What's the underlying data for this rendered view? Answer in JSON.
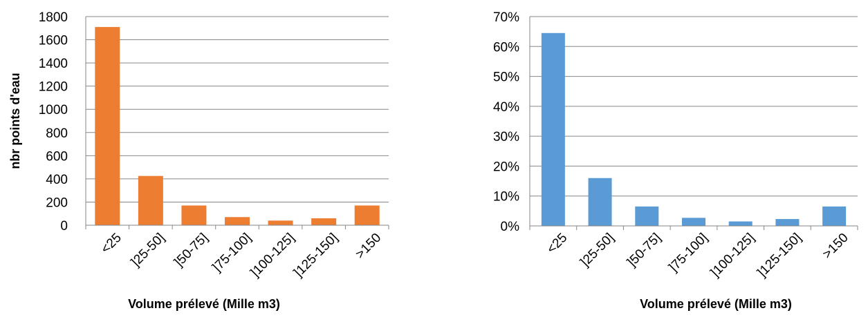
{
  "chart_data": [
    {
      "type": "bar",
      "title": "",
      "xlabel": "Volume prélevé (Mille m3)",
      "ylabel": "nbr points d'eau",
      "categories": [
        "<25",
        "]25-50]",
        "]50-75]",
        "]75-100]",
        "]100-125]",
        "]125-150]",
        ">150"
      ],
      "series": [
        {
          "values": [
            1710,
            425,
            170,
            70,
            40,
            60,
            170
          ]
        }
      ],
      "ylim": [
        0,
        1800
      ],
      "yticks": [
        0,
        200,
        400,
        600,
        800,
        1000,
        1200,
        1400,
        1600,
        1800
      ],
      "ytick_labels": [
        "0",
        "200",
        "400",
        "600",
        "800",
        "1000",
        "1200",
        "1400",
        "1600",
        "1800"
      ],
      "grid": true,
      "legend": "none",
      "color": "#ED7D31"
    },
    {
      "type": "bar",
      "title": "",
      "xlabel": "Volume prélevé (Mille m3)",
      "ylabel": "",
      "categories": [
        "<25",
        "]25-50]",
        "]50-75]",
        "]75-100]",
        "]100-125]",
        "]125-150]",
        ">150"
      ],
      "series": [
        {
          "values": [
            64.5,
            16,
            6.5,
            2.7,
            1.5,
            2.3,
            6.5
          ]
        }
      ],
      "ylim": [
        0,
        70
      ],
      "yticks": [
        0,
        10,
        20,
        30,
        40,
        50,
        60,
        70
      ],
      "ytick_labels": [
        "0%",
        "10%",
        "20%",
        "30%",
        "40%",
        "50%",
        "60%",
        "70%"
      ],
      "grid": true,
      "legend": "none",
      "color": "#5B9BD5"
    }
  ]
}
